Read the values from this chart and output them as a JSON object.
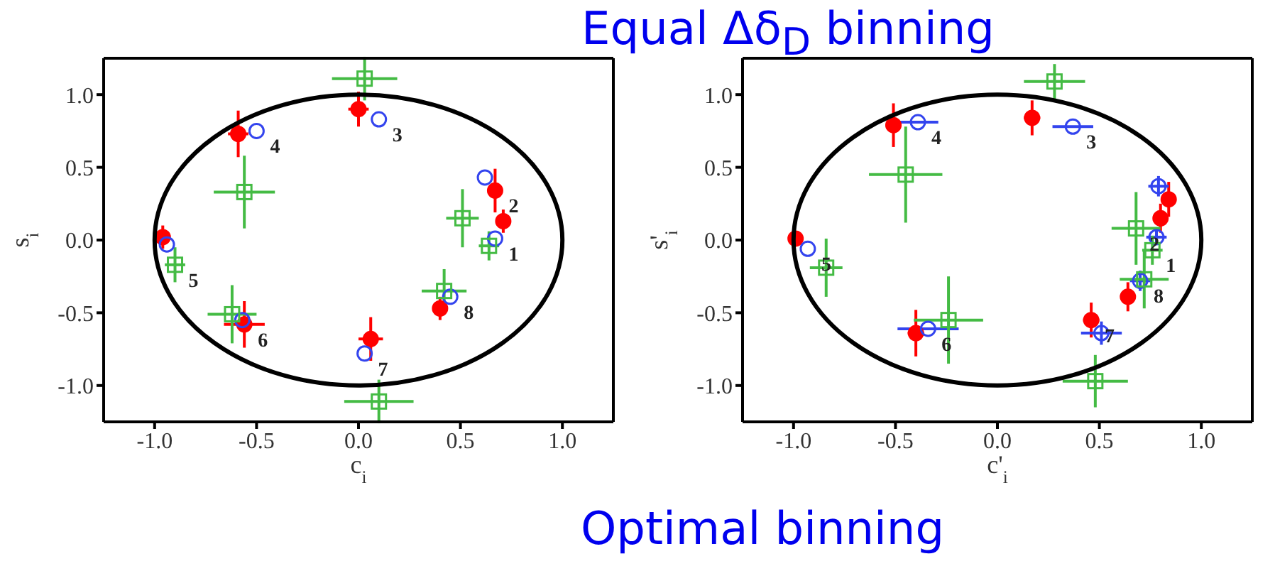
{
  "chart_data": [
    {
      "type": "scatter",
      "xlabel": "c$_{i}$",
      "ylabel": "s$_{i}$",
      "xlim": [
        -1.25,
        1.25
      ],
      "ylim": [
        -1.25,
        1.25
      ],
      "xticks": [
        {
          "value": -1,
          "label": "-1.0"
        },
        {
          "value": -0.5,
          "label": "-0.5"
        },
        {
          "value": 0,
          "label": "0.0"
        },
        {
          "value": 0.5,
          "label": "0.5"
        },
        {
          "value": 1,
          "label": "1.0"
        }
      ],
      "yticks": [
        {
          "value": -1,
          "label": "-1.0"
        },
        {
          "value": -0.5,
          "label": "-0.5"
        },
        {
          "value": 0,
          "label": "0.0"
        },
        {
          "value": 0.5,
          "label": "0.5"
        },
        {
          "value": 1,
          "label": "1.0"
        }
      ],
      "grid": false,
      "series": [
        {
          "color": "#ff0000",
          "marker": "circle",
          "x": [
            0.71,
            0.67,
            0.0,
            -0.59,
            -0.96,
            -0.56,
            0.06,
            0.4
          ],
          "values": [
            0.13,
            0.34,
            0.9,
            0.73,
            0.02,
            -0.58,
            -0.68,
            -0.47
          ],
          "errors": [
            0.08,
            0.15,
            0.12,
            0.16,
            0.08,
            0.16,
            0.15,
            0.08
          ],
          "xerrors": [
            null,
            null,
            0.05,
            0.05,
            null,
            0.1,
            0.06,
            null
          ]
        },
        {
          "color": "#3344ee",
          "marker": "circle",
          "x": [
            0.67,
            0.62,
            0.1,
            -0.5,
            -0.94,
            -0.57,
            0.03,
            0.45
          ],
          "values": [
            0.01,
            0.43,
            0.83,
            0.75,
            -0.03,
            -0.55,
            -0.78,
            -0.39
          ]
        },
        {
          "color": "#44bb44",
          "marker": "square",
          "x": [
            0.64,
            0.51,
            0.03,
            -0.56,
            -0.9,
            -0.62,
            0.1,
            0.42
          ],
          "values": [
            -0.04,
            0.15,
            1.11,
            0.33,
            -0.17,
            -0.51,
            -1.11,
            -0.35
          ],
          "errors": [
            0.1,
            0.2,
            0.15,
            0.25,
            0.12,
            0.2,
            0.15,
            0.15
          ],
          "xerrors": [
            0.05,
            0.08,
            0.16,
            0.15,
            0.05,
            0.12,
            0.17,
            0.11
          ]
        }
      ],
      "annotations": [
        {
          "text": "1",
          "x": 0.67,
          "y": 0.01
        },
        {
          "text": "2",
          "x": 0.67,
          "y": 0.34
        },
        {
          "text": "3",
          "x": 0.1,
          "y": 0.83
        },
        {
          "text": "4",
          "x": -0.5,
          "y": 0.75
        },
        {
          "text": "5",
          "x": -0.9,
          "y": -0.17
        },
        {
          "text": "6",
          "x": -0.56,
          "y": -0.58
        },
        {
          "text": "7",
          "x": 0.03,
          "y": -0.78
        },
        {
          "text": "8",
          "x": 0.45,
          "y": -0.39
        }
      ]
    },
    {
      "type": "scatter",
      "title": "Equal Δδ$_{D}$ binning",
      "xlabel": "c'$_{i}$",
      "ylabel": "s'$_{i}$",
      "xlim": [
        -1.25,
        1.25
      ],
      "ylim": [
        -1.25,
        1.25
      ],
      "xticks": [
        {
          "value": -1,
          "label": "-1.0"
        },
        {
          "value": -0.5,
          "label": "-0.5"
        },
        {
          "value": 0,
          "label": "0.0"
        },
        {
          "value": 0.5,
          "label": "0.5"
        },
        {
          "value": 1,
          "label": "1.0"
        }
      ],
      "yticks": [
        {
          "value": -1,
          "label": "-1.0"
        },
        {
          "value": -0.5,
          "label": "-0.5"
        },
        {
          "value": 0,
          "label": "0.0"
        },
        {
          "value": 0.5,
          "label": "0.5"
        },
        {
          "value": 1,
          "label": "1.0"
        }
      ],
      "grid": false,
      "series": [
        {
          "color": "#ff0000",
          "marker": "circle",
          "x": [
            0.8,
            0.84,
            0.17,
            -0.51,
            -0.99,
            -0.4,
            0.46,
            0.64
          ],
          "values": [
            0.15,
            0.28,
            0.84,
            0.79,
            0.01,
            -0.64,
            -0.55,
            -0.39
          ],
          "errors": [
            0.1,
            0.12,
            0.12,
            0.15,
            0.05,
            0.16,
            0.12,
            0.1
          ],
          "xerrors": [
            null,
            null,
            0.04,
            0.04,
            null,
            0.04,
            0.04,
            null
          ]
        },
        {
          "color": "#3344ee",
          "marker": "circle",
          "x": [
            0.78,
            0.79,
            0.37,
            -0.39,
            -0.93,
            -0.34,
            0.51,
            0.7
          ],
          "values": [
            0.02,
            0.37,
            0.78,
            0.81,
            -0.06,
            -0.61,
            -0.64,
            -0.28
          ],
          "errors": [
            0.05,
            0.07,
            null,
            null,
            null,
            null,
            0.08,
            0.07
          ],
          "xerrors": [
            0.05,
            0.05,
            0.1,
            0.1,
            null,
            0.15,
            0.1,
            0.05
          ]
        },
        {
          "color": "#44bb44",
          "marker": "square",
          "x": [
            0.76,
            0.68,
            0.28,
            -0.45,
            -0.84,
            -0.24,
            0.48,
            0.72
          ],
          "values": [
            -0.07,
            0.08,
            1.09,
            0.45,
            -0.19,
            -0.55,
            -0.97,
            -0.27
          ],
          "errors": [
            0.1,
            0.25,
            0.12,
            0.33,
            0.2,
            0.3,
            0.18,
            0.2
          ],
          "xerrors": [
            0.05,
            0.12,
            0.15,
            0.18,
            0.08,
            0.17,
            0.16,
            0.12
          ]
        }
      ],
      "annotations": [
        {
          "text": "1",
          "x": 0.76,
          "y": -0.07
        },
        {
          "text": "2",
          "x": 0.68,
          "y": 0.08
        },
        {
          "text": "3",
          "x": 0.37,
          "y": 0.78
        },
        {
          "text": "4",
          "x": -0.39,
          "y": 0.81
        },
        {
          "text": "5",
          "x": -0.93,
          "y": -0.06
        },
        {
          "text": "6",
          "x": -0.34,
          "y": -0.61
        },
        {
          "text": "7",
          "x": 0.46,
          "y": -0.55
        },
        {
          "text": "8",
          "x": 0.7,
          "y": -0.28
        },
        "Optimal binning"
      ]
    }
  ]
}
